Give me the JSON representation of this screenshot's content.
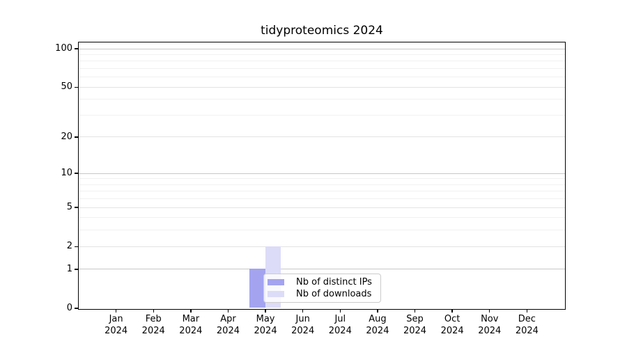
{
  "chart_data": {
    "type": "bar",
    "title": "tidyproteomics 2024",
    "categories": [
      "Jan 2024",
      "Feb 2024",
      "Mar 2024",
      "Apr 2024",
      "May 2024",
      "Jun 2024",
      "Jul 2024",
      "Aug 2024",
      "Sep 2024",
      "Oct 2024",
      "Nov 2024",
      "Dec 2024"
    ],
    "month_labels": [
      "Jan",
      "Feb",
      "Mar",
      "Apr",
      "May",
      "Jun",
      "Jul",
      "Aug",
      "Sep",
      "Oct",
      "Nov",
      "Dec"
    ],
    "year_label": "2024",
    "series": [
      {
        "name": "Nb of distinct IPs",
        "color": "#a3a3f0",
        "values": [
          0,
          0,
          0,
          0,
          1,
          0,
          0,
          0,
          0,
          0,
          0,
          0
        ]
      },
      {
        "name": "Nb of downloads",
        "color": "#dcdcf8",
        "values": [
          0,
          0,
          0,
          0,
          2,
          0,
          0,
          0,
          0,
          0,
          0,
          0
        ]
      }
    ],
    "y_axis": {
      "scale": "log1p",
      "tick_values": [
        0,
        1,
        2,
        5,
        10,
        20,
        50,
        100
      ],
      "minor_gridline_values": [
        3,
        4,
        6,
        7,
        8,
        9,
        30,
        40,
        60,
        70,
        80,
        90
      ],
      "ylim": [
        0,
        112
      ]
    },
    "x_axis": {
      "ticks_per_month": true
    },
    "grid": "horizontal",
    "legend_position": "inside, lower middle of plot",
    "colors": {
      "axis": "#000000",
      "grid_major": "#c8c8c8",
      "grid_mid": "#e3e3e3",
      "grid_minor": "#f1f1f1",
      "legend_border": "#cbcbcb"
    }
  }
}
